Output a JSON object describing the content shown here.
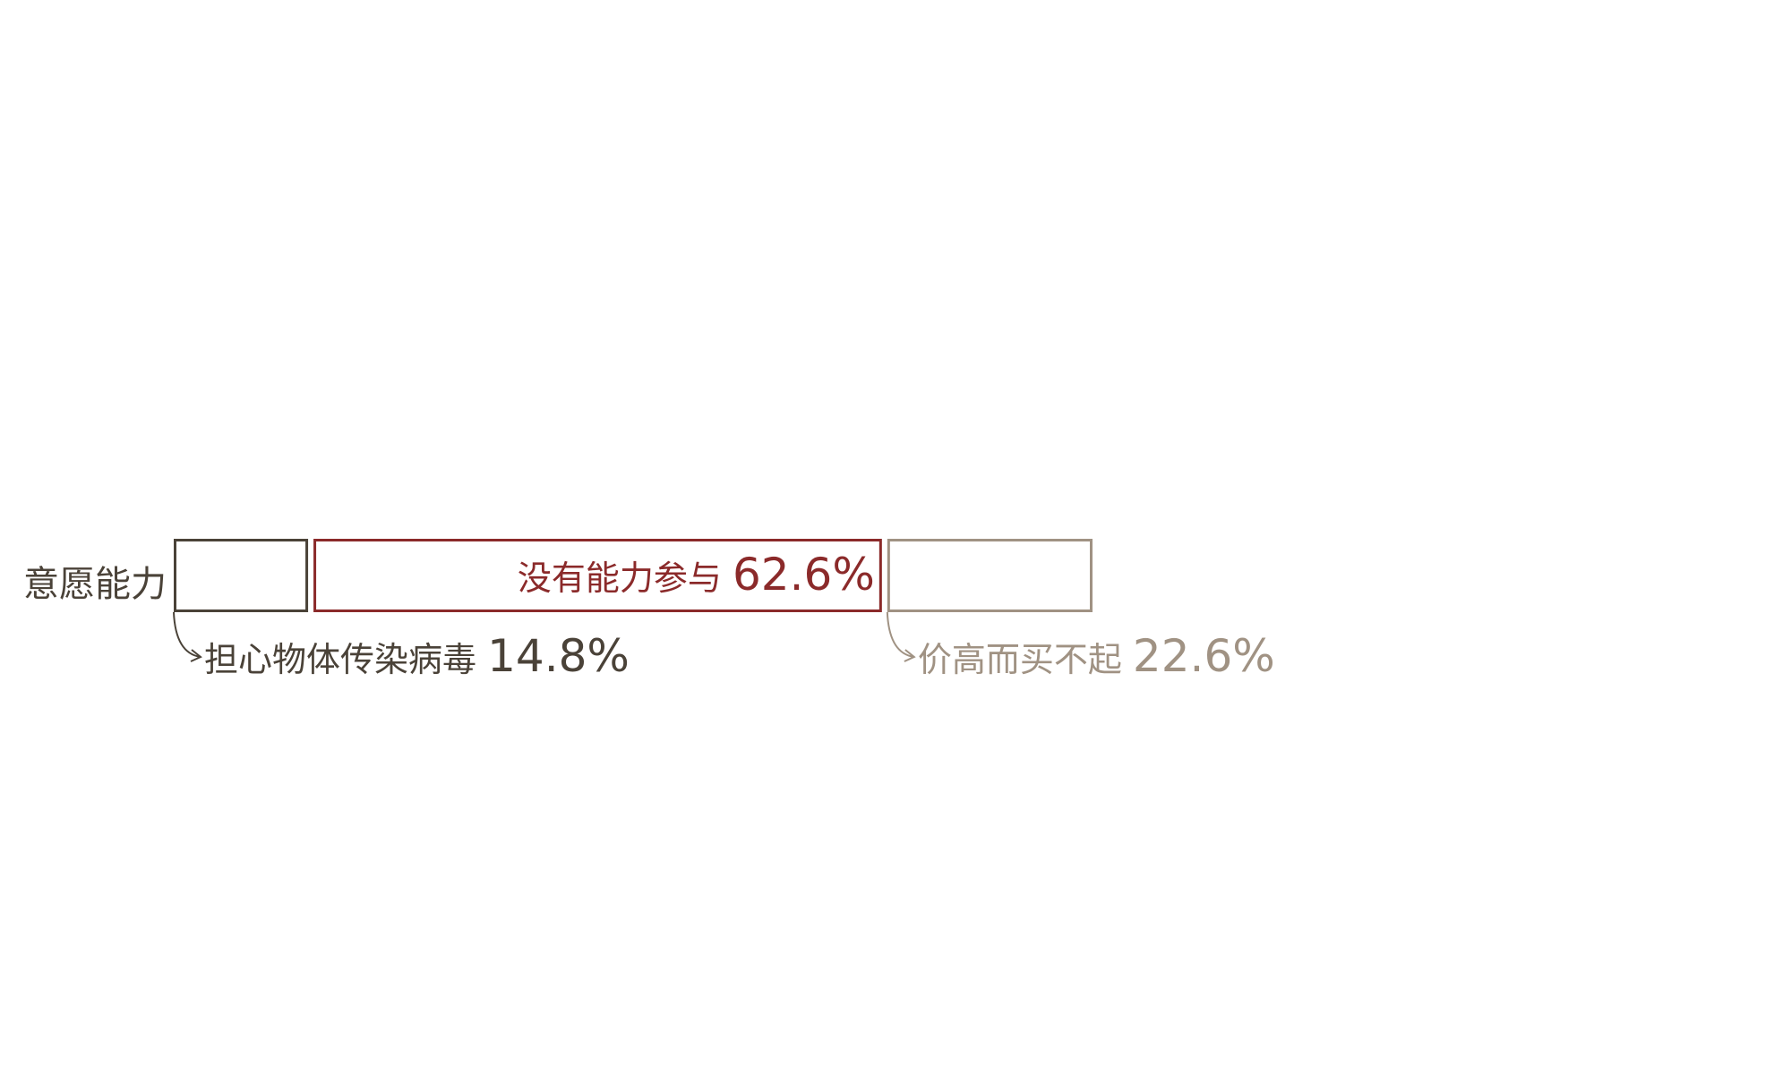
{
  "chart_data": {
    "type": "bar",
    "orientation": "horizontal-stacked",
    "row_label": "意愿能力",
    "segments": [
      {
        "label": "担心物体传染病毒",
        "value": 14.8,
        "value_text": "14.8%",
        "color": "#4a4238",
        "label_position": "below-callout"
      },
      {
        "label": "没有能力参与",
        "value": 62.6,
        "value_text": "62.6%",
        "color": "#8b2a2a",
        "label_position": "inside-right"
      },
      {
        "label": "价高而买不起",
        "value": 22.6,
        "value_text": "22.6%",
        "color": "#a09283",
        "label_position": "below-callout"
      }
    ]
  }
}
